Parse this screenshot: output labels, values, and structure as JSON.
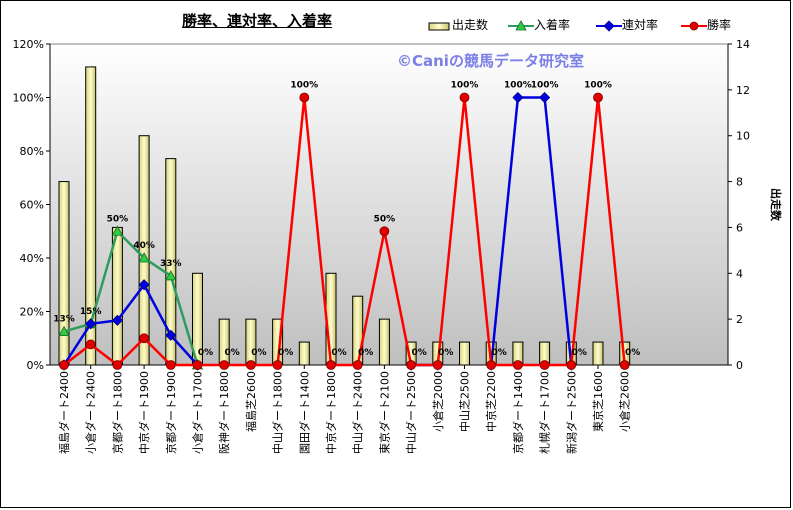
{
  "chart_data": {
    "type": "bar+line",
    "title": "勝率、連対率、入着率",
    "watermark": "©Caniの競馬データ研究室",
    "y2label": "出走数",
    "ylim": [
      0,
      120
    ],
    "y2lim": [
      0,
      14
    ],
    "yticks": [
      "0%",
      "20%",
      "40%",
      "60%",
      "80%",
      "100%",
      "120%"
    ],
    "y2ticks": [
      "0",
      "2",
      "4",
      "6",
      "8",
      "10",
      "12",
      "14"
    ],
    "legend_position": "top-right",
    "categories": [
      "福島ダート2400",
      "小倉ダート2400",
      "京都ダート1800",
      "中京ダート1900",
      "京都ダート1900",
      "小倉ダート1700",
      "阪神ダート1800",
      "福島芝2600",
      "中山ダート1800",
      "園田ダート1400",
      "中京ダート1800",
      "中山ダート2400",
      "東京ダート2100",
      "中山ダート2500",
      "小倉芝2000",
      "中山芝2500",
      "中京芝2200",
      "京都ダート1400",
      "札幌ダート1700",
      "新潟ダート2500",
      "東京芝1600",
      "小倉芝2600"
    ],
    "series": [
      {
        "name": "出走数",
        "kind": "bar",
        "axis": "right",
        "color": "#f3f0a6",
        "values": [
          8,
          13,
          6,
          10,
          9,
          4,
          2,
          2,
          2,
          1,
          4,
          3,
          2,
          1,
          1,
          1,
          1,
          1,
          1,
          1,
          1,
          1
        ]
      },
      {
        "name": "入着率",
        "kind": "line",
        "axis": "left",
        "color": "#2e9c5c",
        "values": [
          12.5,
          15.4,
          50,
          40,
          33.3,
          0,
          null,
          null,
          null,
          null,
          null,
          null,
          null,
          null,
          null,
          null,
          null,
          null,
          null,
          null,
          null,
          null
        ]
      },
      {
        "name": "連対率",
        "kind": "line",
        "axis": "left",
        "color": "#0000e0",
        "values": [
          0,
          15.4,
          16.7,
          30,
          11.1,
          0,
          null,
          null,
          null,
          null,
          null,
          null,
          null,
          0,
          0,
          null,
          0,
          100,
          100,
          0,
          null,
          null
        ]
      },
      {
        "name": "勝率",
        "kind": "line",
        "axis": "left",
        "color": "#ff0000",
        "values": [
          0,
          7.7,
          0,
          10,
          0,
          0,
          0,
          0,
          0,
          100,
          0,
          0,
          50,
          0,
          0,
          100,
          0,
          0,
          0,
          0,
          100,
          0
        ]
      }
    ],
    "data_labels": [
      {
        "index": 0,
        "text": "13%"
      },
      {
        "index": 1,
        "text": "15%"
      },
      {
        "index": 2,
        "text": "50%"
      },
      {
        "index": 3,
        "text": "40%"
      },
      {
        "index": 4,
        "text": "33%"
      },
      {
        "index": 5,
        "text": "0%"
      },
      {
        "index": 6,
        "text": "0%"
      },
      {
        "index": 7,
        "text": "0%"
      },
      {
        "index": 8,
        "text": "0%"
      },
      {
        "index": 9,
        "text": "100%"
      },
      {
        "index": 10,
        "text": "0%"
      },
      {
        "index": 11,
        "text": "0%"
      },
      {
        "index": 12,
        "text": "50%"
      },
      {
        "index": 13,
        "text": "0%"
      },
      {
        "index": 14,
        "text": "0%"
      },
      {
        "index": 15,
        "text": "100%"
      },
      {
        "index": 16,
        "text": "0%"
      },
      {
        "index": 17,
        "text": "100%"
      },
      {
        "index": 18,
        "text": "100%"
      },
      {
        "index": 19,
        "text": "0%"
      },
      {
        "index": 20,
        "text": "100%"
      },
      {
        "index": 21,
        "text": "0%"
      }
    ]
  }
}
